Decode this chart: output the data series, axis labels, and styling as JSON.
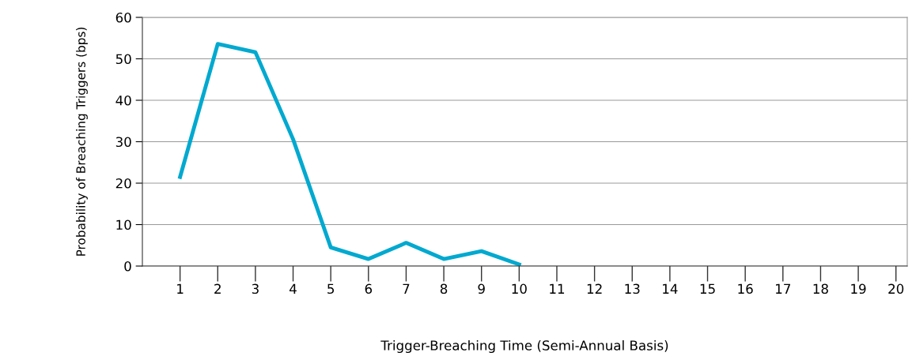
{
  "chart_data": {
    "type": "line",
    "xlabel": "Trigger-Breaching Time (Semi-Annual Basis)",
    "ylabel": "Probability of Breaching Triggers (bps)",
    "x": [
      1,
      2,
      3,
      4,
      5,
      6,
      7,
      8,
      9,
      10
    ],
    "series": [
      {
        "color": "#00a9cf",
        "values": [
          21.5,
          53.6,
          51.6,
          30.6,
          4.5,
          1.7,
          5.6,
          1.7,
          3.6,
          0.4
        ]
      }
    ],
    "xlim": [
      0,
      20.3
    ],
    "xticks": [
      1,
      2,
      3,
      4,
      5,
      6,
      7,
      8,
      9,
      10,
      11,
      12,
      13,
      14,
      15,
      16,
      17,
      18,
      19,
      20
    ],
    "ylim": [
      0,
      60
    ],
    "yticks": [
      0,
      10,
      20,
      30,
      40,
      50,
      60
    ],
    "grid": "y",
    "marker": "none",
    "line_style": "solid",
    "legend": false
  }
}
